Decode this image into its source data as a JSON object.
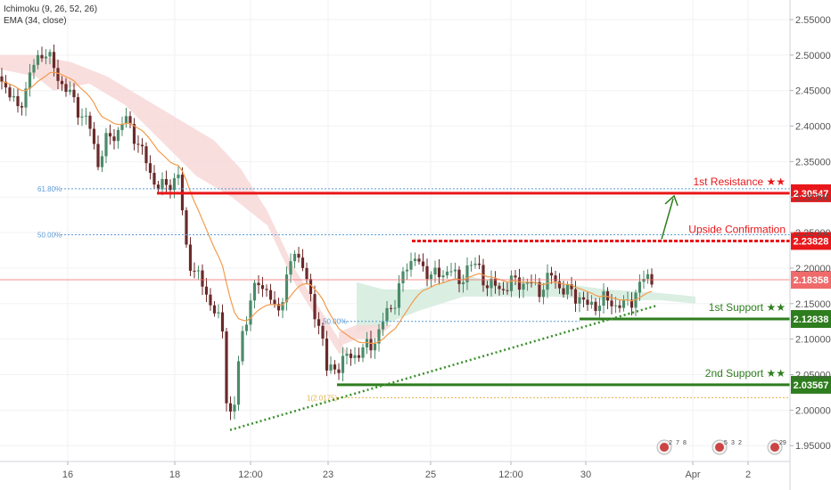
{
  "indicators": {
    "ichimoku": "Ichimoku (9, 26, 52, 26)",
    "ema": "EMA (34, close)"
  },
  "chart_data": {
    "type": "candlestick",
    "y_axis": {
      "ticks": [
        "2.55000",
        "2.50000",
        "2.45000",
        "2.40000",
        "2.35000",
        "2.30000",
        "2.25000",
        "2.20000",
        "2.15000",
        "2.10000",
        "2.05000",
        "2.00000",
        "1.95000"
      ],
      "range": [
        1.925,
        2.575
      ]
    },
    "x_axis": {
      "ticks": [
        "16",
        "18",
        "12:00",
        "23",
        "25",
        "12:00",
        "30",
        "Apr",
        "2"
      ]
    },
    "levels": {
      "resistance1": {
        "label": "1st Resistance ★★",
        "value": "2.30547",
        "color": "#e8171a"
      },
      "upside": {
        "label": "Upside Confirmation",
        "value": "2.23828",
        "color": "#e8171a"
      },
      "current": {
        "value": "2.18358",
        "color": "#ef6a6a"
      },
      "support1": {
        "label": "1st Support ★★",
        "value": "2.12838",
        "color": "#2e7d1e"
      },
      "support2": {
        "label": "2nd Support ★★",
        "value": "2.03567",
        "color": "#2e7d1e"
      }
    },
    "fib_labels": {
      "f618": "61.80%",
      "f500": "50.00%",
      "f500b": "50.00%",
      "f100": "1(2.0175)"
    },
    "event_counts": [
      "2",
      "7",
      "8",
      "5",
      "3",
      "2",
      "29"
    ],
    "colors": {
      "up": "#4b8b6a",
      "down": "#6b2a2a",
      "ema": "#f39b4c",
      "cloud_green": "#cfe8d8",
      "cloud_red": "#f6d3d3"
    }
  }
}
